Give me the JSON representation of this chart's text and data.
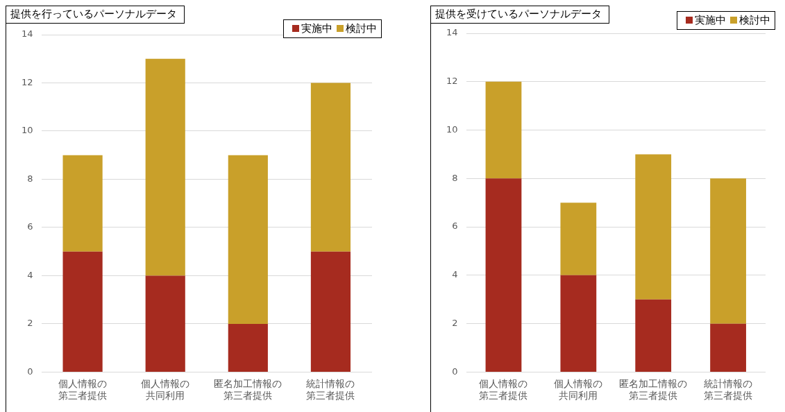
{
  "chart_data": [
    {
      "type": "bar",
      "title": "提供を行っているパーソナルデータ",
      "categories": [
        "個人情報の第三者提供",
        "個人情報の共同利用",
        "匿名加工情報の第三者提供",
        "統計情報の第三者提供"
      ],
      "stacked": true,
      "legend": "top right",
      "grid": "y",
      "ylim": [
        0,
        14
      ],
      "yticks": [
        0,
        2,
        4,
        6,
        8,
        10,
        12,
        14
      ],
      "series": [
        {
          "name": "実施中",
          "color": "#a62b1f",
          "values": [
            5,
            4,
            2,
            5
          ]
        },
        {
          "name": "検討中",
          "color": "#c9a02a",
          "values": [
            4,
            9,
            7,
            7
          ]
        }
      ]
    },
    {
      "type": "bar",
      "title": "提供を受けているパーソナルデータ",
      "categories": [
        "個人情報の第三者提供",
        "個人情報の共同利用",
        "匿名加工情報の第三者提供",
        "統計情報の第三者提供"
      ],
      "stacked": true,
      "legend": "top right",
      "grid": "y",
      "ylim": [
        0,
        14
      ],
      "yticks": [
        0,
        2,
        4,
        6,
        8,
        10,
        12,
        14
      ],
      "series": [
        {
          "name": "実施中",
          "color": "#a62b1f",
          "values": [
            8,
            4,
            3,
            2
          ]
        },
        {
          "name": "検討中",
          "color": "#c9a02a",
          "values": [
            4,
            3,
            6,
            6
          ]
        }
      ]
    }
  ]
}
